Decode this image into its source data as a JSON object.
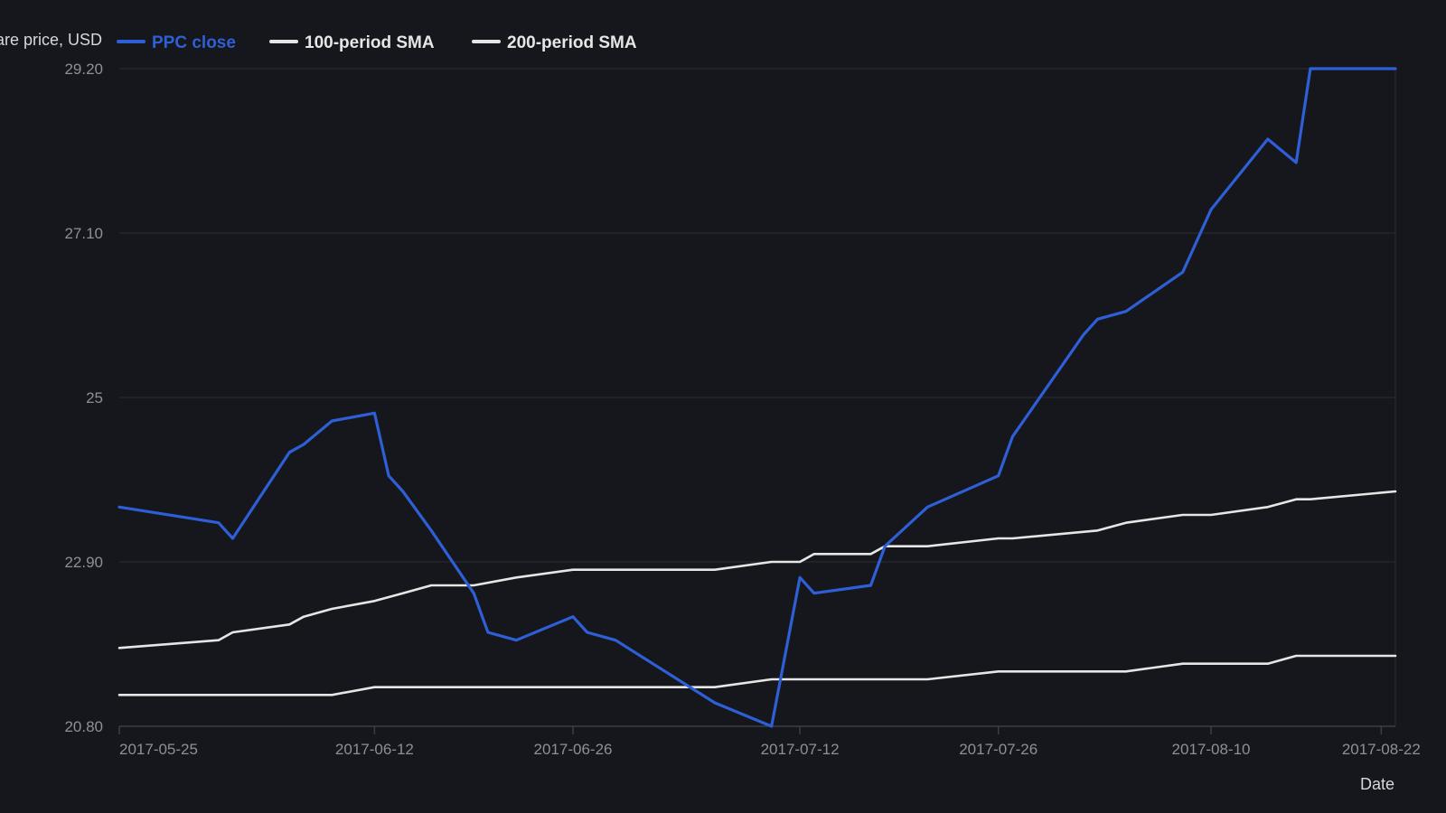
{
  "colors": {
    "background": "#15171c",
    "grid": "#2a2d34",
    "axis": "#3a3e46",
    "tick_text": "#8b9099",
    "ppc": "#2f5fd6",
    "sma": "#e6e6e6"
  },
  "chart_data": {
    "type": "line",
    "xlabel": "Date",
    "ylabel": "Share price, USD",
    "ylim": [
      20.8,
      29.2
    ],
    "yticks": [
      20.8,
      22.9,
      25,
      27.1,
      29.2
    ],
    "ytick_labels": [
      "20.80",
      "22.90",
      "25",
      "27.10",
      "29.20"
    ],
    "xlim": [
      "2017-05-25",
      "2017-08-23"
    ],
    "xticks": [
      "2017-05-25",
      "2017-06-12",
      "2017-06-26",
      "2017-07-12",
      "2017-07-26",
      "2017-08-10",
      "2017-08-22"
    ],
    "grid": true,
    "legend": "top-left",
    "series": [
      {
        "name": "PPC close",
        "color": "#2f5fd6",
        "x": [
          "2017-05-25",
          "2017-06-01",
          "2017-06-02",
          "2017-06-06",
          "2017-06-07",
          "2017-06-09",
          "2017-06-12",
          "2017-06-13",
          "2017-06-14",
          "2017-06-16",
          "2017-06-19",
          "2017-06-20",
          "2017-06-22",
          "2017-06-26",
          "2017-06-27",
          "2017-06-29",
          "2017-07-06",
          "2017-07-10",
          "2017-07-12",
          "2017-07-13",
          "2017-07-17",
          "2017-07-18",
          "2017-07-21",
          "2017-07-26",
          "2017-07-27",
          "2017-08-01",
          "2017-08-02",
          "2017-08-04",
          "2017-08-08",
          "2017-08-10",
          "2017-08-14",
          "2017-08-16",
          "2017-08-17",
          "2017-08-23"
        ],
        "values": [
          23.6,
          23.4,
          23.2,
          24.3,
          24.4,
          24.7,
          24.8,
          24.0,
          23.8,
          23.3,
          22.5,
          22.0,
          21.9,
          22.2,
          22.0,
          21.9,
          21.1,
          20.8,
          22.7,
          22.5,
          22.6,
          23.1,
          23.6,
          24.0,
          24.5,
          25.8,
          26.0,
          26.1,
          26.6,
          27.4,
          28.3,
          28.0,
          29.2,
          29.2
        ]
      },
      {
        "name": "100-period SMA",
        "color": "#e6e6e6",
        "x": [
          "2017-05-25",
          "2017-06-01",
          "2017-06-02",
          "2017-06-06",
          "2017-06-07",
          "2017-06-09",
          "2017-06-12",
          "2017-06-14",
          "2017-06-16",
          "2017-06-19",
          "2017-06-22",
          "2017-06-26",
          "2017-06-27",
          "2017-07-06",
          "2017-07-10",
          "2017-07-12",
          "2017-07-13",
          "2017-07-17",
          "2017-07-18",
          "2017-07-21",
          "2017-07-26",
          "2017-07-27",
          "2017-08-02",
          "2017-08-04",
          "2017-08-08",
          "2017-08-10",
          "2017-08-14",
          "2017-08-16",
          "2017-08-17",
          "2017-08-23"
        ],
        "values": [
          21.8,
          21.9,
          22.0,
          22.1,
          22.2,
          22.3,
          22.4,
          22.5,
          22.6,
          22.6,
          22.7,
          22.8,
          22.8,
          22.8,
          22.9,
          22.9,
          23.0,
          23.0,
          23.1,
          23.1,
          23.2,
          23.2,
          23.3,
          23.4,
          23.5,
          23.5,
          23.6,
          23.7,
          23.7,
          23.8
        ]
      },
      {
        "name": "200-period SMA",
        "color": "#e6e6e6",
        "x": [
          "2017-05-25",
          "2017-06-09",
          "2017-06-12",
          "2017-07-06",
          "2017-07-10",
          "2017-07-12",
          "2017-07-21",
          "2017-07-26",
          "2017-08-04",
          "2017-08-08",
          "2017-08-14",
          "2017-08-16",
          "2017-08-23"
        ],
        "values": [
          21.2,
          21.2,
          21.3,
          21.3,
          21.4,
          21.4,
          21.4,
          21.5,
          21.5,
          21.6,
          21.6,
          21.7,
          21.7
        ]
      }
    ]
  }
}
